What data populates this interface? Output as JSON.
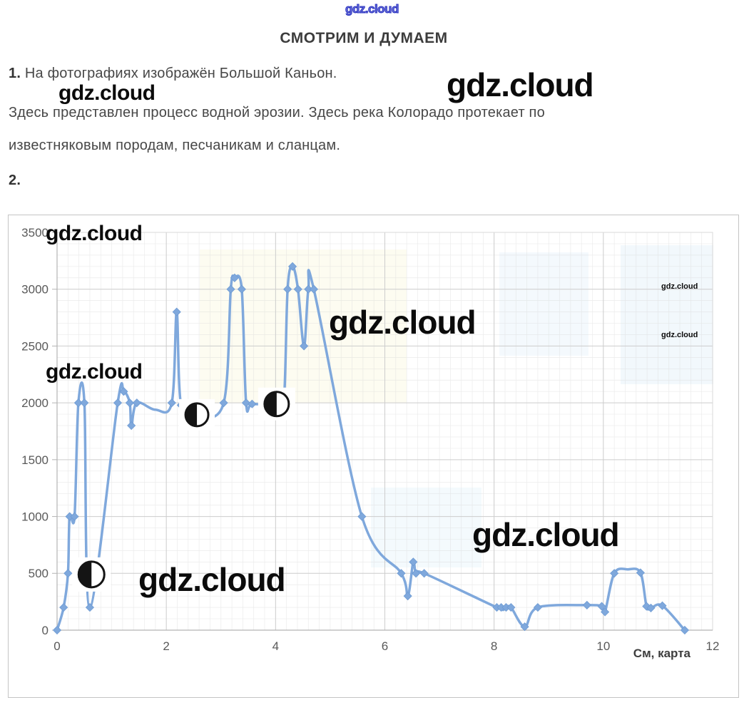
{
  "page": {
    "heading": "СМОТРИМ И ДУМАЕМ",
    "item1_number": "1.",
    "item1_text": " На фотографиях изображён Большой Каньон.",
    "paragraph_line2": "Здесь представлен процесс водной эрозии. Здесь река Колорадо протекает по",
    "paragraph_line3": "известняковым породам, песчаникам и сланцам.",
    "item2_number": "2."
  },
  "watermarks": {
    "top_text": "gdz.cloud",
    "text": "gdz.cloud"
  },
  "chart_data": {
    "type": "line",
    "title": "",
    "xlabel": "См, карта",
    "ylabel": "",
    "xlim": [
      0,
      12
    ],
    "ylim": [
      0,
      3500
    ],
    "x_ticks": [
      0,
      2,
      4,
      6,
      8,
      10,
      12
    ],
    "y_ticks": [
      0,
      500,
      1000,
      1500,
      2000,
      2500,
      3000,
      3500
    ],
    "grid": true,
    "legend_position": "none",
    "line_color": "#7FA8DC",
    "marker_shape": "diamond",
    "points_format": "[x_cm, height_m, diamond_marker_1_or_0]",
    "points": [
      [
        0,
        0,
        1
      ],
      [
        0.12,
        200,
        1
      ],
      [
        0.2,
        500,
        1
      ],
      [
        0.23,
        1000,
        1
      ],
      [
        0.32,
        1000,
        1
      ],
      [
        0.39,
        2000,
        1
      ],
      [
        0.5,
        2000,
        1
      ],
      [
        0.6,
        200,
        1
      ],
      [
        1.11,
        2000,
        1
      ],
      [
        1.22,
        2100,
        1
      ],
      [
        1.33,
        2000,
        1
      ],
      [
        1.36,
        1800,
        1
      ],
      [
        1.46,
        2000,
        1
      ],
      [
        1.8,
        1940,
        0
      ],
      [
        2.1,
        2000,
        1
      ],
      [
        2.19,
        2800,
        1
      ],
      [
        2.27,
        1980,
        1
      ],
      [
        2.56,
        1880,
        0
      ],
      [
        3.05,
        2000,
        1
      ],
      [
        3.18,
        3000,
        1
      ],
      [
        3.25,
        3100,
        1
      ],
      [
        3.38,
        3000,
        1
      ],
      [
        3.46,
        2000,
        1
      ],
      [
        3.57,
        1990,
        1
      ],
      [
        4.0,
        1990,
        0
      ],
      [
        4.15,
        2000,
        1
      ],
      [
        4.22,
        3000,
        1
      ],
      [
        4.31,
        3200,
        1
      ],
      [
        4.41,
        3000,
        1
      ],
      [
        4.52,
        2500,
        1
      ],
      [
        4.6,
        3000,
        1
      ],
      [
        4.7,
        3000,
        1
      ],
      [
        5.58,
        1000,
        1
      ],
      [
        6.3,
        500,
        1
      ],
      [
        6.42,
        300,
        1
      ],
      [
        6.52,
        600,
        1
      ],
      [
        6.57,
        500,
        1
      ],
      [
        6.72,
        500,
        1
      ],
      [
        8.05,
        200,
        1
      ],
      [
        8.13,
        200,
        1
      ],
      [
        8.22,
        200,
        1
      ],
      [
        8.31,
        200,
        1
      ],
      [
        8.56,
        30,
        1
      ],
      [
        8.8,
        200,
        1
      ],
      [
        9.7,
        220,
        1
      ],
      [
        9.97,
        210,
        1
      ],
      [
        10.03,
        160,
        1
      ],
      [
        10.2,
        500,
        1
      ],
      [
        10.45,
        535,
        0
      ],
      [
        10.68,
        505,
        1
      ],
      [
        10.79,
        210,
        1
      ],
      [
        10.87,
        195,
        1
      ],
      [
        11.08,
        215,
        1
      ],
      [
        11.49,
        0,
        1
      ]
    ],
    "half_circle_markers": [
      {
        "x": 0.63,
        "y": 490,
        "r": 18
      },
      {
        "x": 2.56,
        "y": 1895,
        "r": 16
      },
      {
        "x": 4.02,
        "y": 1990,
        "r": 17
      }
    ]
  }
}
